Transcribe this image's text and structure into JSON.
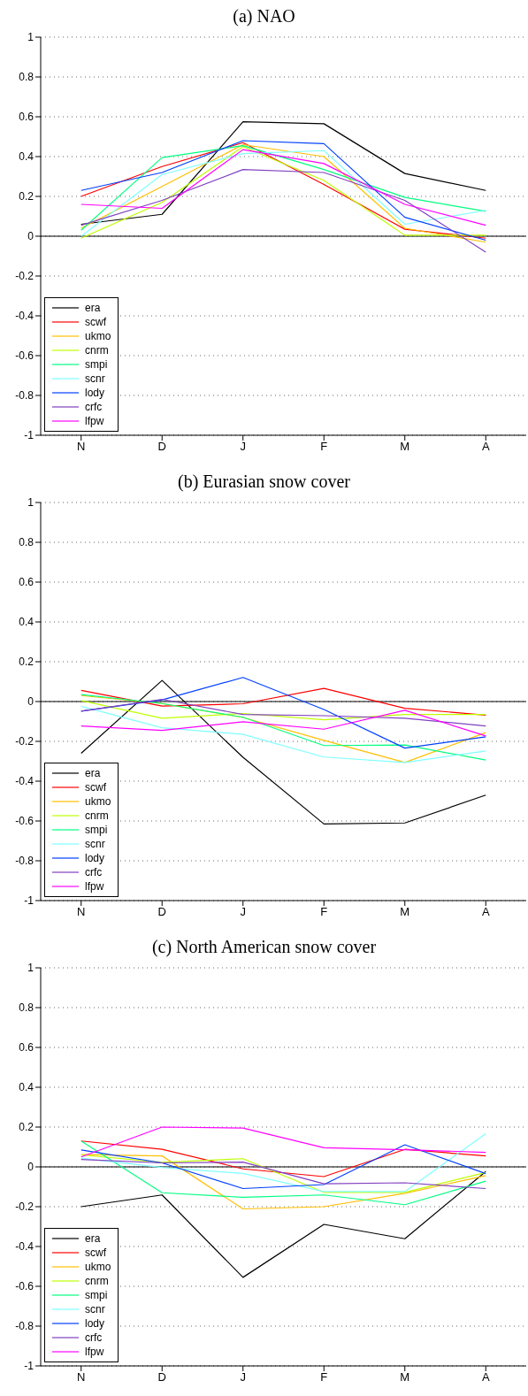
{
  "chart_data": [
    {
      "type": "line",
      "title": "(a) NAO",
      "categories": [
        "N",
        "D",
        "J",
        "F",
        "M",
        "A"
      ],
      "ylim": [
        -1,
        1
      ],
      "yticks": [
        -1,
        -0.8,
        -0.6,
        -0.4,
        -0.2,
        0,
        0.2,
        0.4,
        0.6,
        0.8,
        1
      ],
      "grid": "y",
      "legend": "bottom left",
      "marker": "none",
      "line_style": "solid",
      "ref_lines": [
        {
          "axis": "y",
          "value": 0,
          "color": "#000000"
        }
      ],
      "series": [
        {
          "name": "era",
          "color": "#000000",
          "values": [
            0.06,
            0.11,
            0.575,
            0.565,
            0.315,
            0.23
          ]
        },
        {
          "name": "scwf",
          "color": "#ff0000",
          "values": [
            0.2,
            0.35,
            0.47,
            0.26,
            0.035,
            -0.01
          ]
        },
        {
          "name": "ukmo",
          "color": "#ffbf00",
          "values": [
            0.04,
            0.25,
            0.46,
            0.4,
            0.04,
            -0.03
          ]
        },
        {
          "name": "cnrm",
          "color": "#bfff00",
          "values": [
            -0.01,
            0.17,
            0.45,
            0.28,
            0.005,
            0.005
          ]
        },
        {
          "name": "smpi",
          "color": "#00ff80",
          "values": [
            0.03,
            0.395,
            0.455,
            0.335,
            0.195,
            0.125
          ]
        },
        {
          "name": "scnr",
          "color": "#80ffff",
          "values": [
            0.0,
            0.31,
            0.415,
            0.43,
            0.06,
            0.13
          ]
        },
        {
          "name": "lody",
          "color": "#0040ff",
          "values": [
            0.23,
            0.32,
            0.48,
            0.465,
            0.095,
            -0.02
          ]
        },
        {
          "name": "crfc",
          "color": "#8040c0",
          "values": [
            0.055,
            0.18,
            0.335,
            0.32,
            0.18,
            -0.08
          ]
        },
        {
          "name": "lfpw",
          "color": "#ff00ff",
          "values": [
            0.16,
            0.14,
            0.435,
            0.365,
            0.16,
            0.055
          ]
        }
      ]
    },
    {
      "type": "line",
      "title": "(b) Eurasian snow cover",
      "categories": [
        "N",
        "D",
        "J",
        "F",
        "M",
        "A"
      ],
      "ylim": [
        -1,
        1
      ],
      "yticks": [
        -1,
        -0.8,
        -0.6,
        -0.4,
        -0.2,
        0,
        0.2,
        0.4,
        0.6,
        0.8,
        1
      ],
      "grid": "y",
      "legend": "bottom left",
      "marker": "none",
      "line_style": "solid",
      "ref_lines": [
        {
          "axis": "y",
          "value": 0,
          "color": "#000000"
        }
      ],
      "series": [
        {
          "name": "era",
          "color": "#000000",
          "values": [
            -0.26,
            0.106,
            -0.28,
            -0.615,
            -0.61,
            -0.47
          ]
        },
        {
          "name": "scwf",
          "color": "#ff0000",
          "values": [
            0.056,
            -0.023,
            -0.011,
            0.066,
            -0.034,
            -0.068
          ]
        },
        {
          "name": "ukmo",
          "color": "#ffbf00",
          "values": [
            0.03,
            -0.01,
            -0.08,
            -0.195,
            -0.306,
            -0.156
          ]
        },
        {
          "name": "cnrm",
          "color": "#bfff00",
          "values": [
            0.005,
            -0.084,
            -0.06,
            -0.092,
            -0.065,
            -0.065
          ]
        },
        {
          "name": "smpi",
          "color": "#00ff80",
          "values": [
            0.035,
            -0.01,
            -0.079,
            -0.221,
            -0.218,
            -0.294
          ]
        },
        {
          "name": "scnr",
          "color": "#80ffff",
          "values": [
            -0.024,
            -0.132,
            -0.165,
            -0.279,
            -0.306,
            -0.248
          ]
        },
        {
          "name": "lody",
          "color": "#0040ff",
          "values": [
            -0.048,
            0.008,
            0.121,
            -0.04,
            -0.234,
            -0.177
          ]
        },
        {
          "name": "crfc",
          "color": "#8040c0",
          "values": [
            -0.048,
            0.011,
            -0.065,
            -0.071,
            -0.084,
            -0.123
          ]
        },
        {
          "name": "lfpw",
          "color": "#ff00ff",
          "values": [
            -0.123,
            -0.145,
            -0.102,
            -0.139,
            -0.044,
            -0.173
          ]
        }
      ]
    },
    {
      "type": "line",
      "title": "(c) North American snow cover",
      "categories": [
        "N",
        "D",
        "J",
        "F",
        "M",
        "A"
      ],
      "ylim": [
        -1,
        1
      ],
      "yticks": [
        -1,
        -0.8,
        -0.6,
        -0.4,
        -0.2,
        0,
        0.2,
        0.4,
        0.6,
        0.8,
        1
      ],
      "grid": "y",
      "legend": "bottom left",
      "marker": "none",
      "line_style": "solid",
      "ref_lines": [
        {
          "axis": "y",
          "value": 0,
          "color": "#000000"
        }
      ],
      "series": [
        {
          "name": "era",
          "color": "#000000",
          "values": [
            -0.2,
            -0.141,
            -0.555,
            -0.289,
            -0.361,
            -0.023
          ]
        },
        {
          "name": "scwf",
          "color": "#ff0000",
          "values": [
            0.13,
            0.088,
            -0.01,
            -0.049,
            0.088,
            0.055
          ]
        },
        {
          "name": "ukmo",
          "color": "#ffbf00",
          "values": [
            0.062,
            0.055,
            -0.211,
            -0.2,
            -0.133,
            -0.044
          ]
        },
        {
          "name": "cnrm",
          "color": "#bfff00",
          "values": [
            0.06,
            0.023,
            0.041,
            -0.128,
            -0.128,
            -0.028
          ]
        },
        {
          "name": "smpi",
          "color": "#00ff80",
          "values": [
            0.13,
            -0.13,
            -0.153,
            -0.141,
            -0.19,
            -0.072
          ]
        },
        {
          "name": "scnr",
          "color": "#80ffff",
          "values": [
            0.044,
            -0.003,
            -0.033,
            -0.124,
            -0.124,
            0.167
          ]
        },
        {
          "name": "lody",
          "color": "#0040ff",
          "values": [
            0.085,
            0.02,
            -0.109,
            -0.089,
            0.111,
            -0.034
          ]
        },
        {
          "name": "crfc",
          "color": "#8040c0",
          "values": [
            0.037,
            0.02,
            0.024,
            -0.085,
            -0.08,
            -0.109
          ]
        },
        {
          "name": "lfpw",
          "color": "#ff00ff",
          "values": [
            0.05,
            0.2,
            0.195,
            0.096,
            0.086,
            0.073
          ]
        }
      ]
    }
  ]
}
